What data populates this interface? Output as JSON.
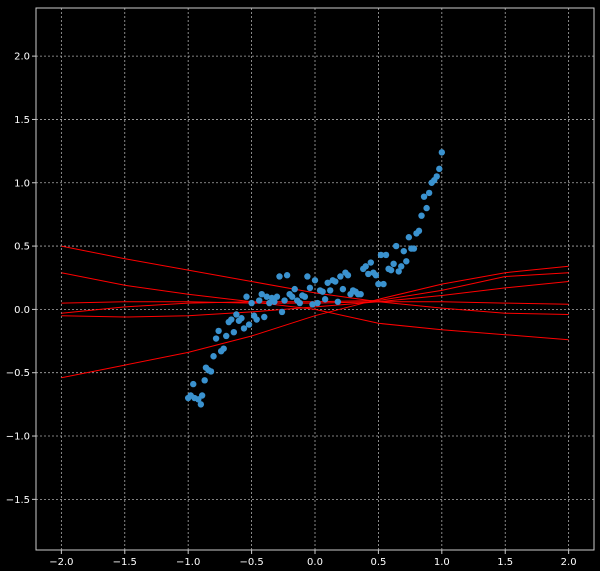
{
  "chart_data": {
    "type": "scatter",
    "title": "",
    "xlabel": "",
    "ylabel": "",
    "xlim": [
      -2.2,
      2.2
    ],
    "ylim": [
      -1.9,
      2.38
    ],
    "grid": true,
    "background": "#000000",
    "frame_color": "#cccccc",
    "grid_color": "#aaaaaa",
    "x_ticks": [
      {
        "value": -2.0,
        "label": "−2.0"
      },
      {
        "value": -1.5,
        "label": "−1.5"
      },
      {
        "value": -1.0,
        "label": "−1.0"
      },
      {
        "value": -0.5,
        "label": "−0.5"
      },
      {
        "value": 0.0,
        "label": "0.0"
      },
      {
        "value": 0.5,
        "label": "0.5"
      },
      {
        "value": 1.0,
        "label": "1.0"
      },
      {
        "value": 1.5,
        "label": "1.5"
      },
      {
        "value": 2.0,
        "label": "2.0"
      }
    ],
    "y_ticks": [
      {
        "value": -1.5,
        "label": "−1.5"
      },
      {
        "value": -1.0,
        "label": "−1.0"
      },
      {
        "value": -0.5,
        "label": "−0.5"
      },
      {
        "value": 0.0,
        "label": "0.0"
      },
      {
        "value": 0.5,
        "label": "0.5"
      },
      {
        "value": 1.0,
        "label": "1.0"
      },
      {
        "value": 1.5,
        "label": "1.5"
      },
      {
        "value": 2.0,
        "label": "2.0"
      }
    ],
    "scatter": {
      "color": "#3a92cf",
      "points": [
        [
          -1.0,
          -0.7
        ],
        [
          -0.98,
          -0.68
        ],
        [
          -0.96,
          -0.59
        ],
        [
          -0.95,
          -0.7
        ],
        [
          -0.92,
          -0.71
        ],
        [
          -0.9,
          -0.75
        ],
        [
          -0.89,
          -0.68
        ],
        [
          -0.87,
          -0.56
        ],
        [
          -0.86,
          -0.46
        ],
        [
          -0.84,
          -0.48
        ],
        [
          -0.82,
          -0.49
        ],
        [
          -0.8,
          -0.37
        ],
        [
          -0.78,
          -0.23
        ],
        [
          -0.76,
          -0.17
        ],
        [
          -0.74,
          -0.33
        ],
        [
          -0.72,
          -0.31
        ],
        [
          -0.7,
          -0.21
        ],
        [
          -0.68,
          -0.1
        ],
        [
          -0.66,
          -0.08
        ],
        [
          -0.64,
          -0.18
        ],
        [
          -0.62,
          -0.04
        ],
        [
          -0.6,
          -0.09
        ],
        [
          -0.58,
          -0.07
        ],
        [
          -0.56,
          -0.15
        ],
        [
          -0.54,
          0.1
        ],
        [
          -0.52,
          -0.12
        ],
        [
          -0.5,
          0.05
        ],
        [
          -0.48,
          -0.05
        ],
        [
          -0.46,
          -0.08
        ],
        [
          -0.44,
          0.07
        ],
        [
          -0.42,
          0.12
        ],
        [
          -0.4,
          -0.06
        ],
        [
          -0.38,
          0.1
        ],
        [
          -0.36,
          0.05
        ],
        [
          -0.34,
          0.09
        ],
        [
          -0.32,
          0.06
        ],
        [
          -0.3,
          0.1
        ],
        [
          -0.28,
          0.26
        ],
        [
          -0.26,
          -0.02
        ],
        [
          -0.24,
          0.07
        ],
        [
          -0.22,
          0.27
        ],
        [
          -0.2,
          0.12
        ],
        [
          -0.18,
          0.1
        ],
        [
          -0.16,
          0.16
        ],
        [
          -0.14,
          0.07
        ],
        [
          -0.12,
          0.05
        ],
        [
          -0.1,
          0.11
        ],
        [
          -0.08,
          0.1
        ],
        [
          -0.06,
          0.26
        ],
        [
          -0.04,
          0.17
        ],
        [
          -0.02,
          0.04
        ],
        [
          0.0,
          0.23
        ],
        [
          0.02,
          0.05
        ],
        [
          0.04,
          0.15
        ],
        [
          0.06,
          0.14
        ],
        [
          0.08,
          0.08
        ],
        [
          0.1,
          0.21
        ],
        [
          0.12,
          0.15
        ],
        [
          0.14,
          0.23
        ],
        [
          0.16,
          0.22
        ],
        [
          0.18,
          0.06
        ],
        [
          0.2,
          0.26
        ],
        [
          0.22,
          0.16
        ],
        [
          0.24,
          0.29
        ],
        [
          0.26,
          0.27
        ],
        [
          0.28,
          0.12
        ],
        [
          0.3,
          0.15
        ],
        [
          0.32,
          0.14
        ],
        [
          0.34,
          0.12
        ],
        [
          0.36,
          0.12
        ],
        [
          0.38,
          0.32
        ],
        [
          0.4,
          0.34
        ],
        [
          0.42,
          0.28
        ],
        [
          0.44,
          0.37
        ],
        [
          0.46,
          0.29
        ],
        [
          0.48,
          0.27
        ],
        [
          0.5,
          0.2
        ],
        [
          0.52,
          0.43
        ],
        [
          0.54,
          0.2
        ],
        [
          0.56,
          0.43
        ],
        [
          0.58,
          0.32
        ],
        [
          0.6,
          0.31
        ],
        [
          0.62,
          0.36
        ],
        [
          0.64,
          0.5
        ],
        [
          0.66,
          0.3
        ],
        [
          0.68,
          0.34
        ],
        [
          0.7,
          0.46
        ],
        [
          0.72,
          0.38
        ],
        [
          0.74,
          0.57
        ],
        [
          0.76,
          0.48
        ],
        [
          0.78,
          0.48
        ],
        [
          0.8,
          0.6
        ],
        [
          0.82,
          0.62
        ],
        [
          0.84,
          0.74
        ],
        [
          0.86,
          0.89
        ],
        [
          0.88,
          0.8
        ],
        [
          0.9,
          0.92
        ],
        [
          0.92,
          1.0
        ],
        [
          0.94,
          1.02
        ],
        [
          0.96,
          1.05
        ],
        [
          0.98,
          1.11
        ],
        [
          1.0,
          1.24
        ]
      ]
    },
    "lines": {
      "color": "#ff0000",
      "series": [
        {
          "values": [
            [
              -2.0,
              0.5
            ],
            [
              -1.5,
              0.4
            ],
            [
              -1.0,
              0.31
            ],
            [
              -0.5,
              0.22
            ],
            [
              0.0,
              0.13
            ],
            [
              0.5,
              0.06
            ],
            [
              1.0,
              0.01
            ],
            [
              1.5,
              -0.03
            ],
            [
              2.0,
              -0.04
            ]
          ]
        },
        {
          "values": [
            [
              -2.0,
              0.29
            ],
            [
              -1.5,
              0.19
            ],
            [
              -1.0,
              0.12
            ],
            [
              -0.5,
              0.06
            ],
            [
              0.0,
              0.0
            ],
            [
              0.5,
              -0.11
            ],
            [
              1.0,
              -0.16
            ],
            [
              1.5,
              -0.2
            ],
            [
              2.0,
              -0.24
            ]
          ]
        },
        {
          "values": [
            [
              -2.0,
              -0.05
            ],
            [
              -1.5,
              -0.06
            ],
            [
              -1.0,
              -0.05
            ],
            [
              -0.5,
              -0.02
            ],
            [
              0.0,
              0.02
            ],
            [
              0.5,
              0.06
            ],
            [
              1.0,
              0.11
            ],
            [
              1.5,
              0.17
            ],
            [
              2.0,
              0.22
            ]
          ]
        },
        {
          "values": [
            [
              -2.0,
              -0.03
            ],
            [
              -1.5,
              0.02
            ],
            [
              -1.0,
              0.05
            ],
            [
              -0.5,
              0.06
            ],
            [
              0.0,
              0.06
            ],
            [
              0.5,
              0.07
            ],
            [
              1.0,
              0.15
            ],
            [
              1.5,
              0.26
            ],
            [
              2.0,
              0.29
            ]
          ]
        },
        {
          "values": [
            [
              -2.0,
              -0.54
            ],
            [
              -1.5,
              -0.44
            ],
            [
              -1.0,
              -0.34
            ],
            [
              -0.5,
              -0.21
            ],
            [
              0.0,
              -0.05
            ],
            [
              0.5,
              0.08
            ],
            [
              1.0,
              0.2
            ],
            [
              1.5,
              0.29
            ],
            [
              2.0,
              0.34
            ]
          ]
        },
        {
          "values": [
            [
              -2.0,
              0.05
            ],
            [
              -1.5,
              0.06
            ],
            [
              -1.0,
              0.06
            ],
            [
              -0.5,
              0.05
            ],
            [
              0.0,
              0.05
            ],
            [
              0.5,
              0.06
            ],
            [
              1.0,
              0.06
            ],
            [
              1.5,
              0.05
            ],
            [
              2.0,
              0.04
            ]
          ]
        }
      ]
    }
  }
}
